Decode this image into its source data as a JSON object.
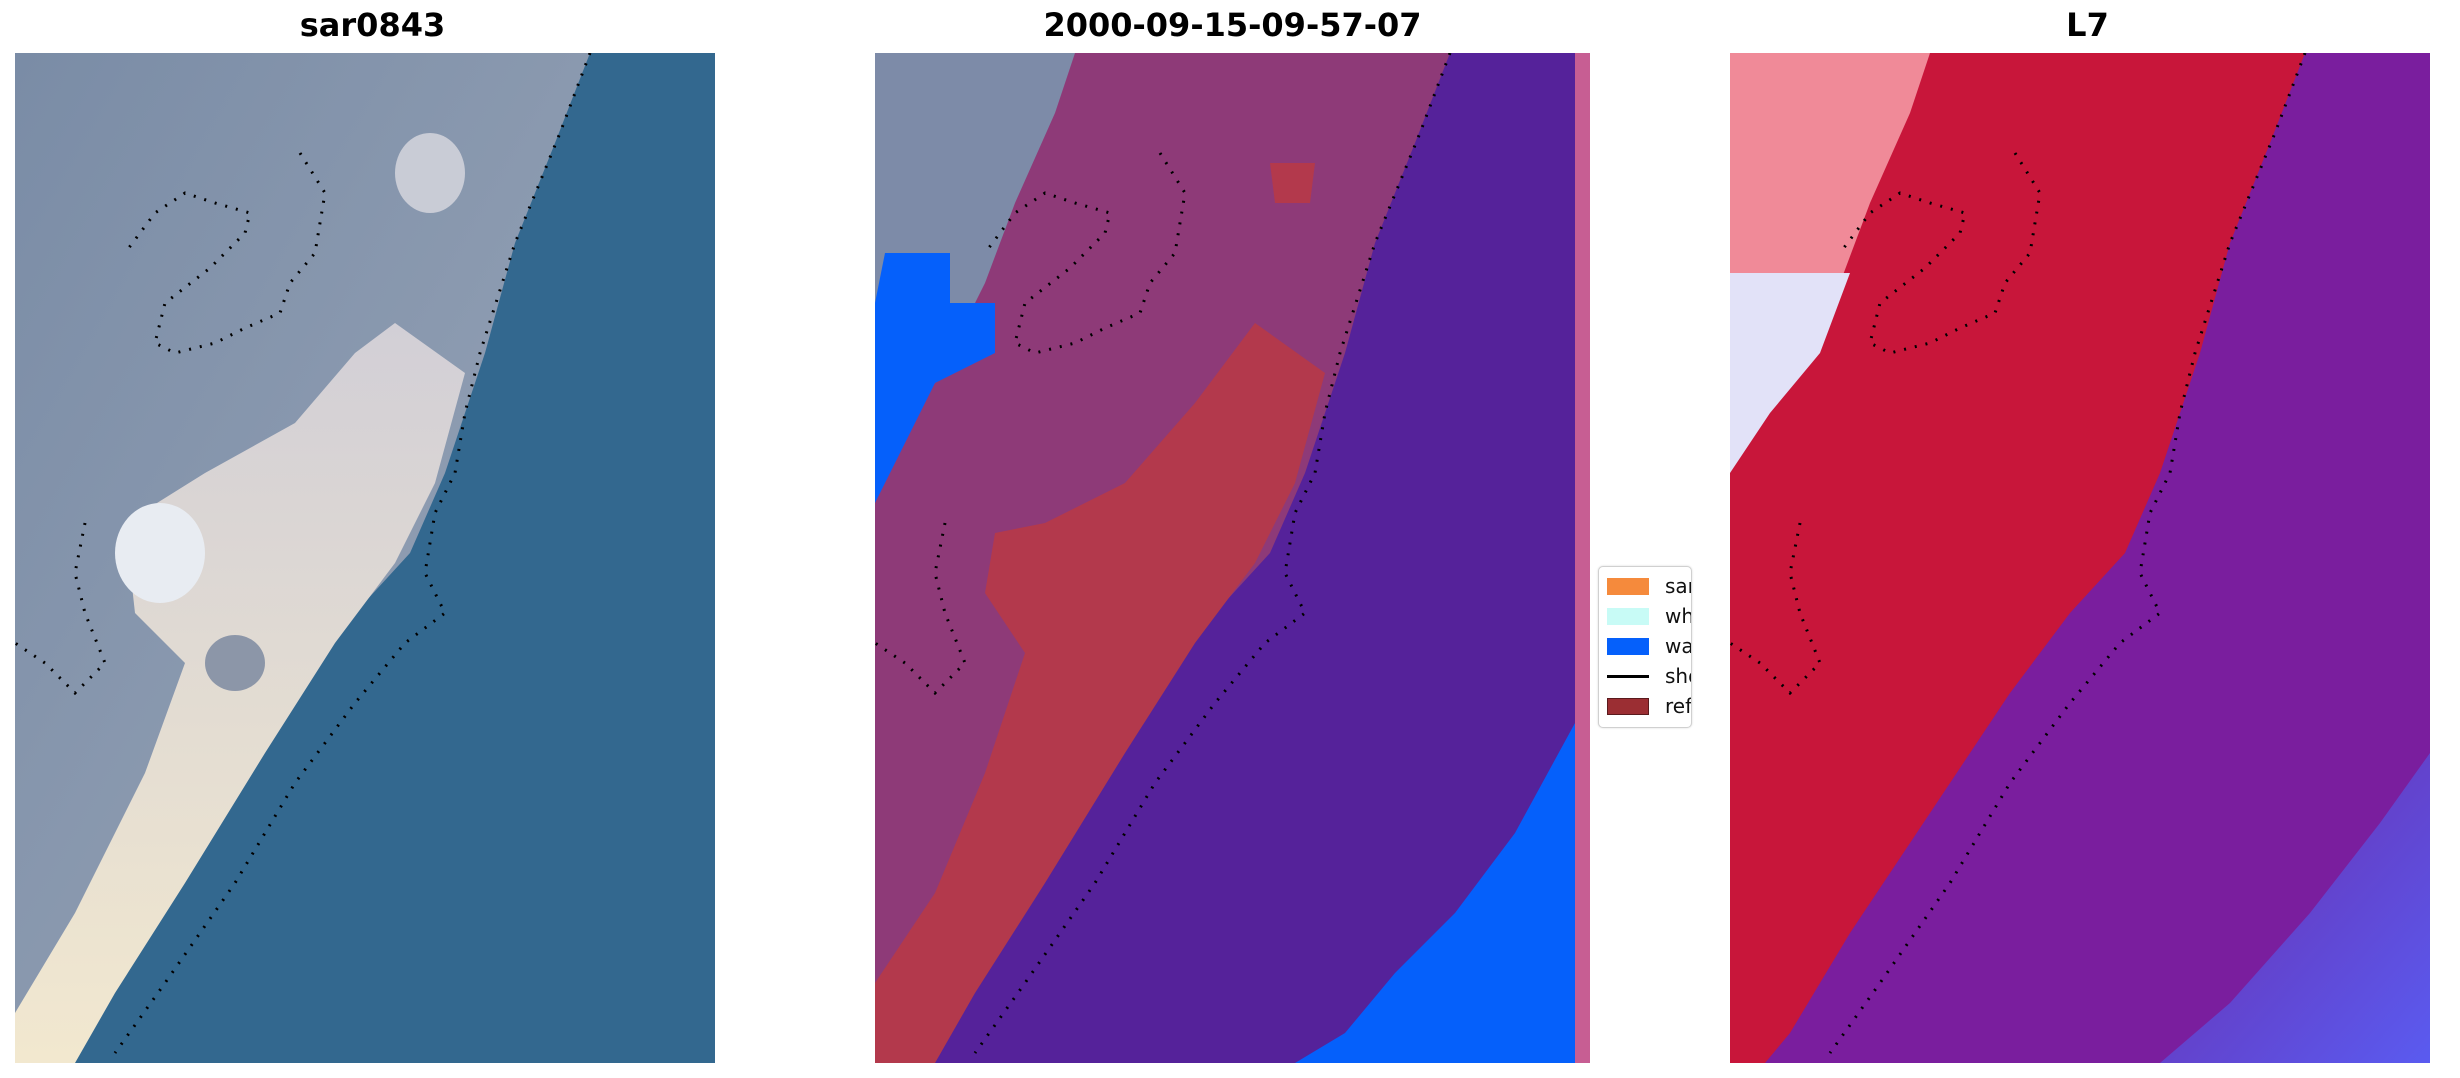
{
  "panels": [
    {
      "title": "sar0843"
    },
    {
      "title": "2000-09-15-09-57-07"
    },
    {
      "title": "L7"
    }
  ],
  "legend": {
    "items": [
      {
        "label": "sand",
        "color": "#f58a3c",
        "type": "patch"
      },
      {
        "label": "whitewater",
        "color": "#c8fbf6",
        "type": "patch"
      },
      {
        "label": "water",
        "color": "#0560fb",
        "type": "patch"
      },
      {
        "label": "shoreline",
        "color": "#000000",
        "type": "line"
      },
      {
        "label": "reference",
        "color": "#9b2e33",
        "type": "patch"
      }
    ]
  },
  "colors": {
    "ocean": "#33688f",
    "sand_rgb": "#e6dcc8",
    "land_rgb": "#8a99b0",
    "purple_water": "#55229a",
    "class_sand": "#b3394c",
    "water_class": "#0560fb",
    "red_index": "#c8163a",
    "purple_index": "#7a1e9e",
    "blue_index": "#5a5bf0"
  }
}
